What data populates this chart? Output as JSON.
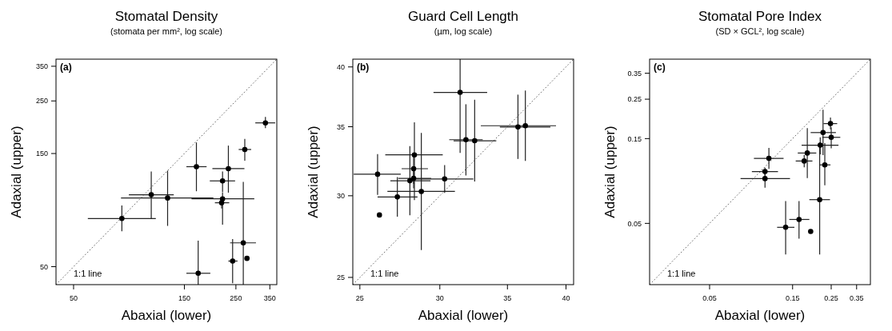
{
  "chart_data": [
    {
      "type": "scatter",
      "title": "Stomatal Density",
      "subtitle": "(stomata per mm², log scale)",
      "xlabel": "Abaxial (lower)",
      "ylabel": "Adaxial (upper)",
      "annotations": [
        "(a)",
        "1:1 line"
      ],
      "log": "xy",
      "xlim": [
        42,
        375
      ],
      "ylim": [
        42,
        375
      ],
      "xticks": [
        50,
        150,
        250,
        350
      ],
      "yticks": [
        50,
        150,
        250,
        350
      ],
      "series": [
        {
          "type": "line",
          "color": "#555555",
          "line_style": "dotted",
          "x": [
            42,
            375
          ],
          "values": [
            42,
            375
          ]
        },
        {
          "marker": "circle",
          "color": "#000000",
          "x": [
            80.7,
            108,
            127,
            169,
            172,
            232,
            219,
            219,
            217,
            273,
            335,
            269,
            242,
            279
          ],
          "values": [
            79.8,
            100.5,
            97.4,
            132,
            46.9,
            129.5,
            115,
            96.6,
            93,
            156,
            202,
            63,
            52.8,
            54.2
          ],
          "xerrors": [
            [
              57.6,
              113
            ],
            [
              86.5,
              135
            ],
            [
              80,
              200
            ],
            [
              153,
              187
            ],
            [
              153,
              194
            ],
            [
              198,
              272
            ],
            [
              193,
              248
            ],
            [
              161,
              300
            ],
            [
              203,
              234
            ],
            [
              257,
              291
            ],
            [
              303,
              369
            ],
            [
              236,
              305
            ],
            [
              232,
              254
            ],
            null
          ],
          "errors": [
            [
              70.5,
              90.6
            ],
            [
              79.8,
              126
            ],
            [
              74.3,
              127
            ],
            [
              104,
              167
            ],
            [
              42,
              64.4
            ],
            [
              102.6,
              162
            ],
            [
              103,
              126
            ],
            [
              75.2,
              102.6
            ],
            [
              88,
              98
            ],
            [
              140,
              173
            ],
            [
              192,
              214
            ],
            [
              42,
              114
            ],
            [
              42.6,
              65.4
            ],
            null
          ]
        }
      ]
    },
    {
      "type": "scatter",
      "title": "Guard Cell Length",
      "subtitle": "(µm, log scale)",
      "xlabel": "Abaxial (lower)",
      "ylabel": "Adaxial (upper)",
      "annotations": [
        "(b)",
        "1:1 line"
      ],
      "log": "xy",
      "xlim": [
        24.6,
        40.7
      ],
      "ylim": [
        24.6,
        40.7
      ],
      "xticks": [
        25,
        30,
        35,
        40
      ],
      "yticks": [
        25,
        30,
        35,
        40
      ],
      "series": [
        {
          "type": "line",
          "color": "#555555",
          "line_style": "dotted",
          "x": [
            24.6,
            40.7
          ],
          "values": [
            24.6,
            40.7
          ]
        },
        {
          "marker": "circle",
          "color": "#000000",
          "x": [
            26.03,
            26.14,
            27.23,
            28.02,
            28.26,
            28.31,
            28.26,
            28.76,
            30.33,
            31.42,
            31.84,
            32.48,
            35.85,
            36.46
          ],
          "values": [
            31.48,
            28.74,
            29.92,
            31.02,
            31.87,
            32.87,
            31.19,
            30.29,
            31.15,
            37.79,
            34.0,
            33.92,
            34.98,
            35.08
          ],
          "xerrors": [
            [
              24.65,
              27.44
            ],
            null,
            [
              26.03,
              28.51
            ],
            [
              26.8,
              29.37
            ],
            [
              27.5,
              29.2
            ],
            [
              26.49,
              30.2
            ],
            [
              27.29,
              29.41
            ],
            [
              26.62,
              31.05
            ],
            [
              28.18,
              32.38
            ],
            [
              29.57,
              33.42
            ],
            [
              30.65,
              33.08
            ],
            [
              30.96,
              34.12
            ],
            [
              34.4,
              38.6
            ],
            [
              32.94,
              39.1
            ]
          ],
          "errors": [
            [
              30.06,
              32.93
            ],
            null,
            [
              28.63,
              31.28
            ],
            [
              28.72,
              33.52
            ],
            [
              30.8,
              33.0
            ],
            [
              29.71,
              35.35
            ],
            [
              30.5,
              31.9
            ],
            [
              26.58,
              34.52
            ],
            [
              30.2,
              32.12
            ],
            [
              33.02,
              40.7
            ],
            [
              31.39,
              36.8
            ],
            [
              30.97,
              37.18
            ],
            [
              32.57,
              37.6
            ],
            [
              32.43,
              37.95
            ]
          ]
        }
      ]
    },
    {
      "type": "scatter",
      "title": "Stomatal Pore Index",
      "subtitle": "(SD × GCL², log scale)",
      "xlabel": "Abaxial (lower)",
      "ylabel": "Adaxial (upper)",
      "annotations": [
        "(c)",
        "1:1 line"
      ],
      "log": "xy",
      "xlim": [
        0.0226,
        0.42
      ],
      "ylim": [
        0.0226,
        0.42
      ],
      "xticks": [
        0.05,
        0.15,
        0.25,
        0.35
      ],
      "yticks": [
        0.05,
        0.15,
        0.25,
        0.35
      ],
      "series": [
        {
          "type": "line",
          "color": "#555555",
          "line_style": "dotted",
          "x": [
            0.0226,
            0.42
          ],
          "values": [
            0.0226,
            0.42
          ]
        },
        {
          "marker": "circle",
          "color": "#000000",
          "x": [
            0.1096,
            0.1041,
            0.1041,
            0.1368,
            0.1633,
            0.1905,
            0.1749,
            0.1822,
            0.2162,
            0.2244,
            0.2146,
            0.2297,
            0.2476,
            0.2501
          ],
          "values": [
            0.1161,
            0.0979,
            0.0893,
            0.0475,
            0.0526,
            0.045,
            0.1122,
            0.1244,
            0.1377,
            0.1622,
            0.068,
            0.1067,
            0.1822,
            0.1525
          ],
          "xerrors": [
            [
              0.0899,
              0.1331
            ],
            [
              0.0875,
              0.1236
            ],
            [
              0.0753,
              0.1449
            ],
            [
              0.1222,
              0.1536
            ],
            [
              0.1435,
              0.1872
            ],
            null,
            [
              0.1563,
              0.195
            ],
            [
              0.1606,
              0.2052
            ],
            [
              0.169,
              0.2753
            ],
            [
              0.1905,
              0.2661
            ],
            [
              0.1872,
              0.246
            ],
            [
              0.2133,
              0.2476
            ],
            [
              0.2259,
              0.2706
            ],
            [
              0.222,
              0.2819
            ]
          ],
          "errors": [
            [
              0.1013,
              0.1331
            ],
            [
              0.093,
              0.103
            ],
            [
              0.0793,
              0.0979
            ],
            [
              0.0334,
              0.0668
            ],
            [
              0.041,
              0.0668
            ],
            null,
            [
              0.1035,
              0.1214
            ],
            [
              0.0899,
              0.1719
            ],
            [
              0.1223,
              0.1525
            ],
            [
              0.121,
              0.2183
            ],
            [
              0.0334,
              0.1425
            ],
            [
              0.082,
              0.1415
            ],
            [
              0.169,
              0.1971
            ],
            [
              0.1322,
              0.1737
            ]
          ]
        }
      ]
    }
  ]
}
